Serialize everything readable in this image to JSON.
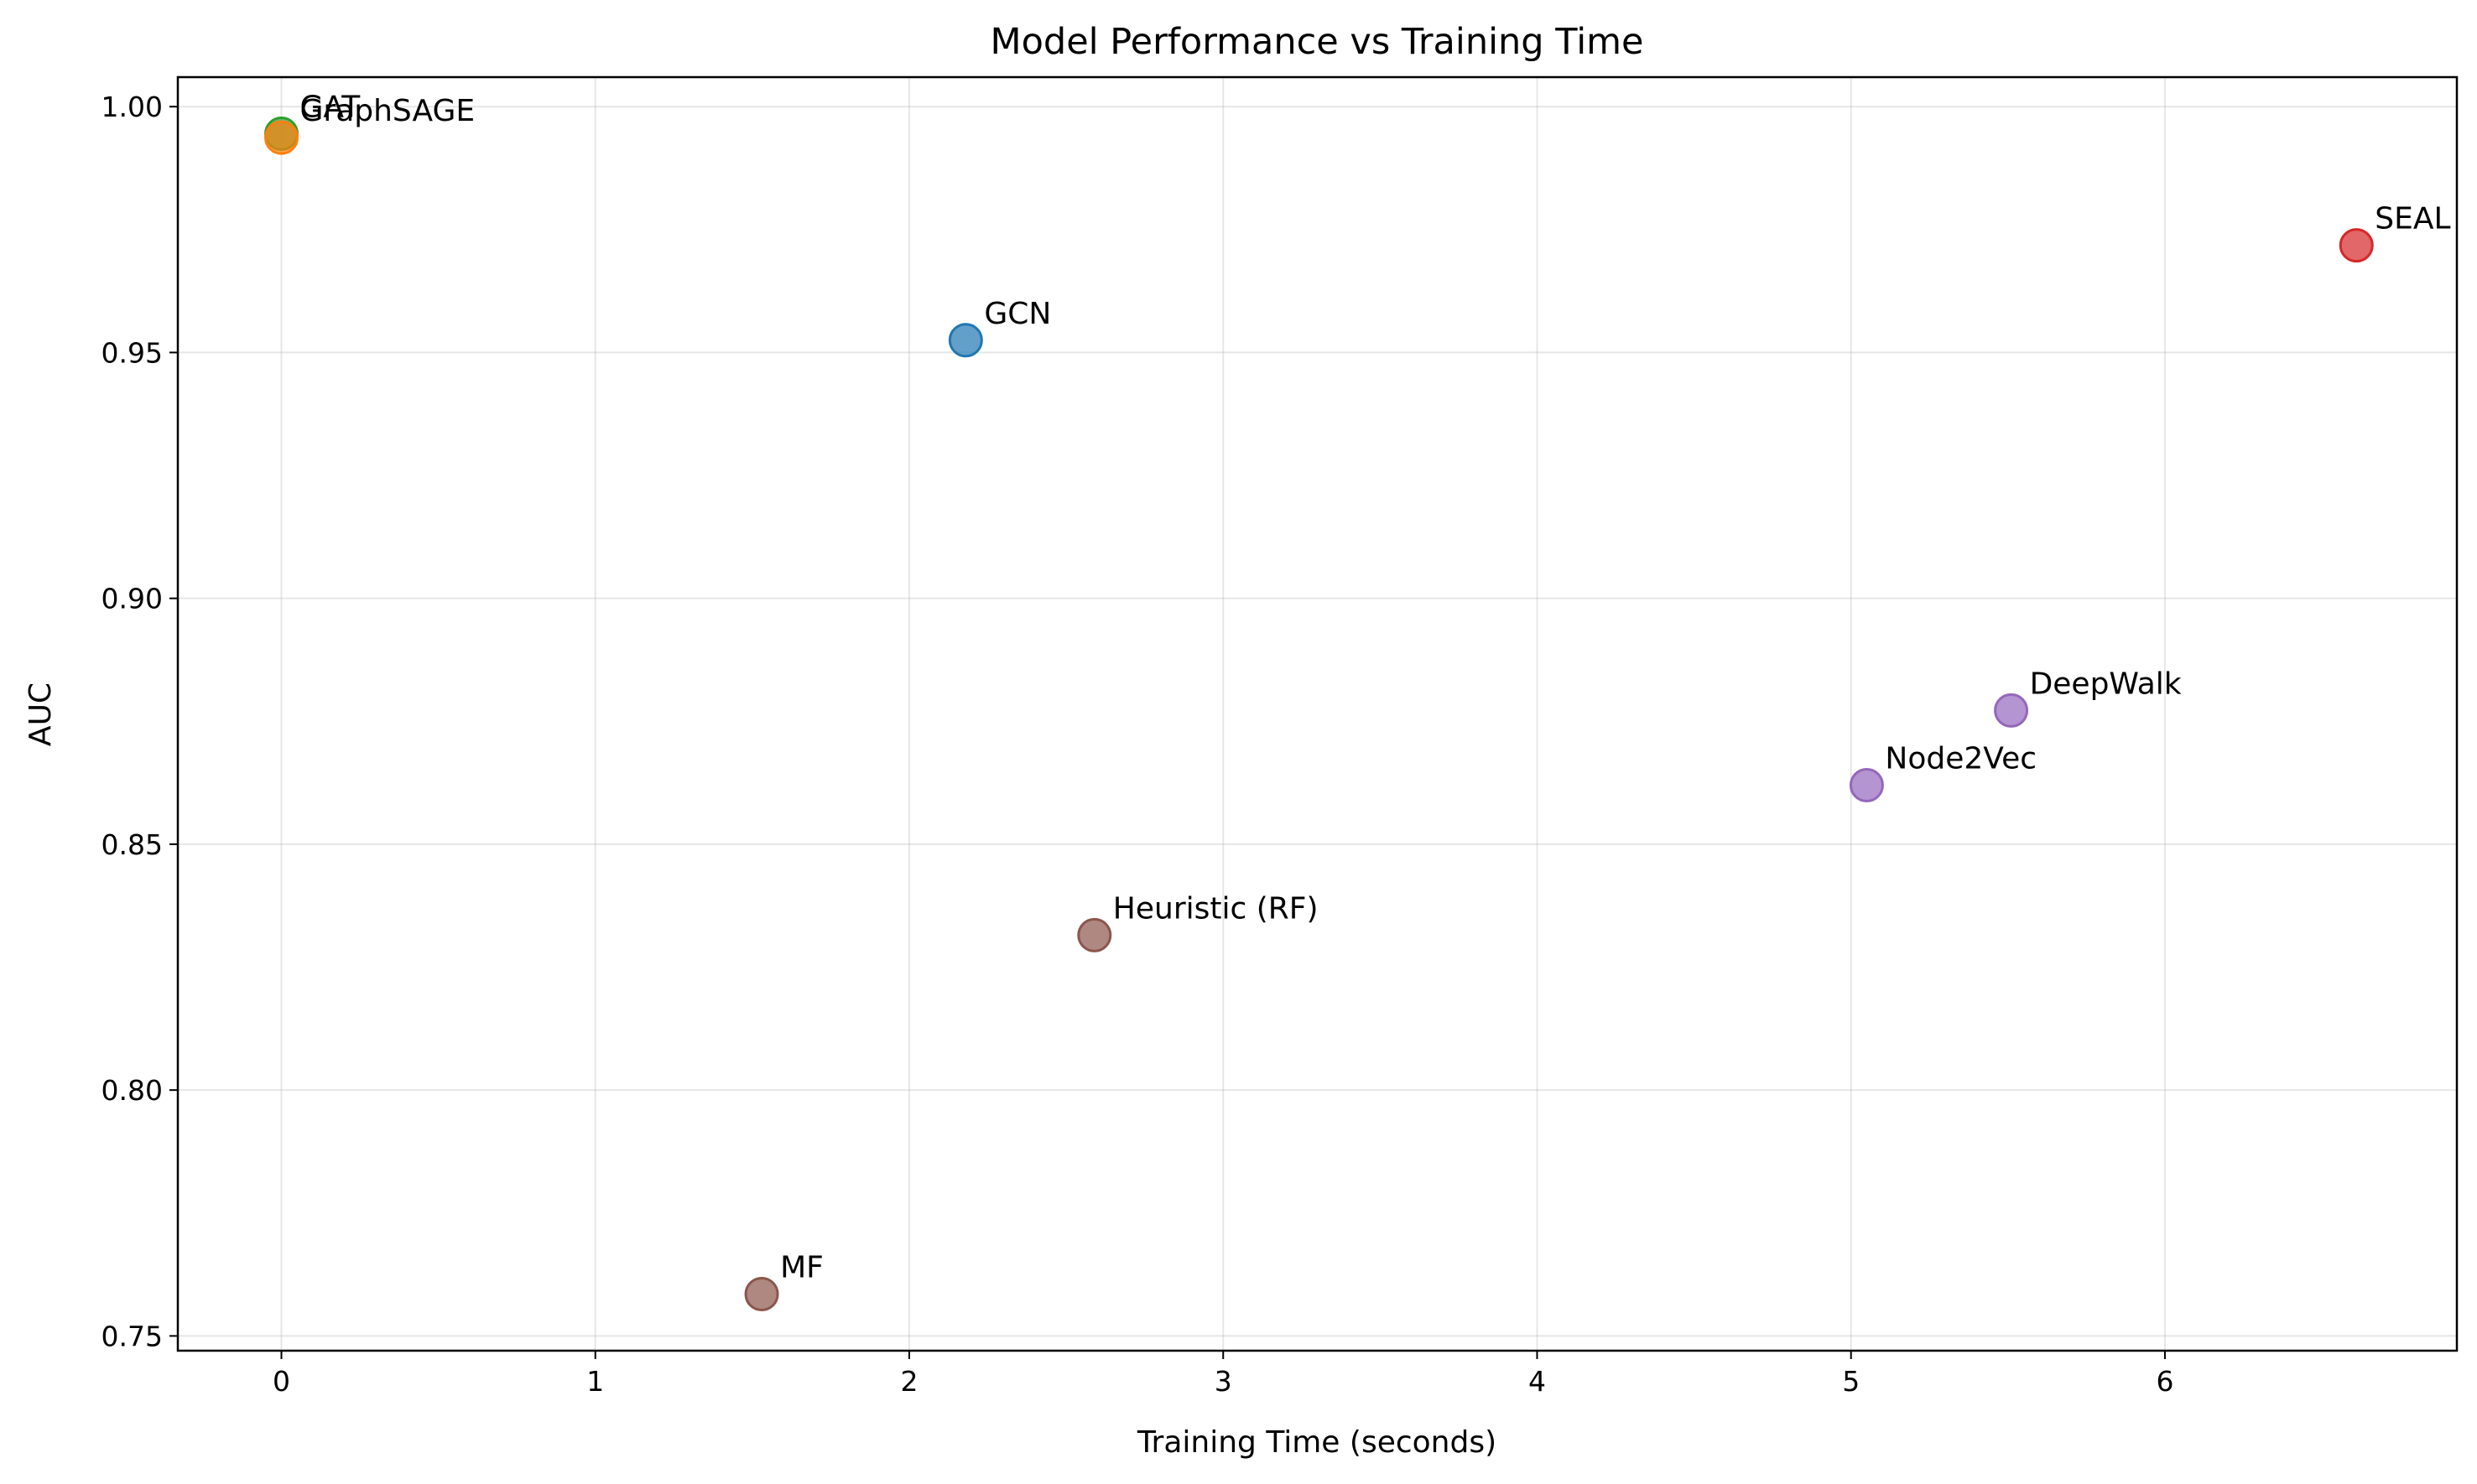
{
  "chart_data": {
    "type": "scatter",
    "title": "Model Performance vs Training Time",
    "xlabel": "Training Time (seconds)",
    "ylabel": "AUC",
    "xlim": [
      -0.33,
      6.93
    ],
    "ylim": [
      0.747,
      1.006
    ],
    "xticks": [
      0,
      1,
      2,
      3,
      4,
      5,
      6
    ],
    "xtick_labels": [
      "0",
      "1",
      "2",
      "3",
      "4",
      "5",
      "6"
    ],
    "yticks": [
      0.75,
      0.8,
      0.85,
      0.9,
      0.95,
      1.0
    ],
    "ytick_labels": [
      "0.75",
      "0.80",
      "0.85",
      "0.90",
      "0.95",
      "1.00"
    ],
    "grid": true,
    "points": [
      {
        "label": "GAT",
        "x": 0.0,
        "y": 0.9945,
        "color": "#2ca02c"
      },
      {
        "label": "GraphSAGE",
        "x": 0.0,
        "y": 0.9937,
        "color": "#ff7f0e"
      },
      {
        "label": "GCN",
        "x": 2.18,
        "y": 0.9525,
        "color": "#1f77b4"
      },
      {
        "label": "SEAL",
        "x": 6.61,
        "y": 0.9718,
        "color": "#d62728"
      },
      {
        "label": "DeepWalk",
        "x": 5.51,
        "y": 0.8772,
        "color": "#9467bd"
      },
      {
        "label": "Node2Vec",
        "x": 5.05,
        "y": 0.862,
        "color": "#9467bd"
      },
      {
        "label": "Heuristic (RF)",
        "x": 2.59,
        "y": 0.8315,
        "color": "#8c564b"
      },
      {
        "label": "MF",
        "x": 1.53,
        "y": 0.7585,
        "color": "#8c564b"
      }
    ]
  }
}
